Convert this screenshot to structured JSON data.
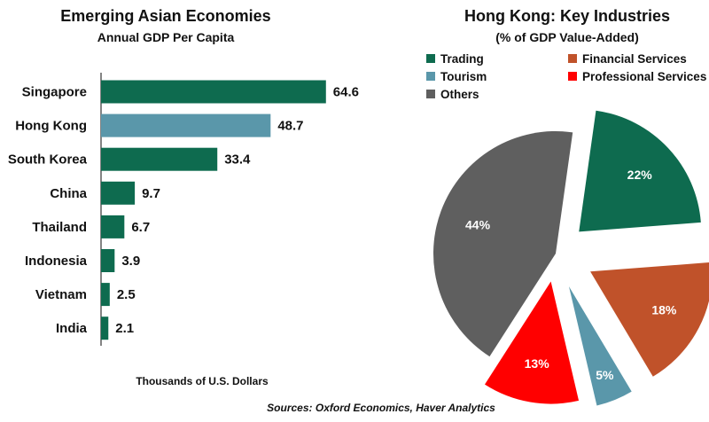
{
  "chart_data": [
    {
      "type": "bar",
      "orientation": "horizontal",
      "title": "Emerging Asian Economies",
      "subtitle": "Annual GDP Per Capita",
      "xlabel": "Thousands of U.S. Dollars",
      "categories": [
        "Singapore",
        "Hong Kong",
        "South Korea",
        "China",
        "Thailand",
        "Indonesia",
        "Vietnam",
        "India"
      ],
      "values": [
        64.6,
        48.7,
        33.4,
        9.7,
        6.7,
        3.9,
        2.5,
        2.1
      ],
      "value_labels": [
        "64.6",
        "48.7",
        "33.4",
        "9.7",
        "6.7",
        "3.9",
        "2.5",
        "2.1"
      ],
      "bar_colors": [
        "#0e6b4f",
        "#5a97aa",
        "#0e6b4f",
        "#0e6b4f",
        "#0e6b4f",
        "#0e6b4f",
        "#0e6b4f",
        "#0e6b4f"
      ],
      "xlim": [
        0,
        70
      ],
      "grid": false
    },
    {
      "type": "pie",
      "title": "Hong Kong: Key Industries",
      "subtitle": "(% of GDP Value-Added)",
      "legend_position": "top",
      "slices": [
        {
          "name": "Trading",
          "value": 22,
          "label": "22%",
          "color": "#0e6b4f"
        },
        {
          "name": "Financial Services",
          "value": 18,
          "label": "18%",
          "color": "#c0522a"
        },
        {
          "name": "Tourism",
          "value": 5,
          "label": "5%",
          "color": "#5a97aa"
        },
        {
          "name": "Professional Services",
          "value": 13,
          "label": "13%",
          "color": "#ff0000"
        },
        {
          "name": "Others",
          "value": 44,
          "label": "44%",
          "color": "#5f5f5f"
        }
      ]
    }
  ],
  "source": "Sources: Oxford Economics, Haver Analytics"
}
